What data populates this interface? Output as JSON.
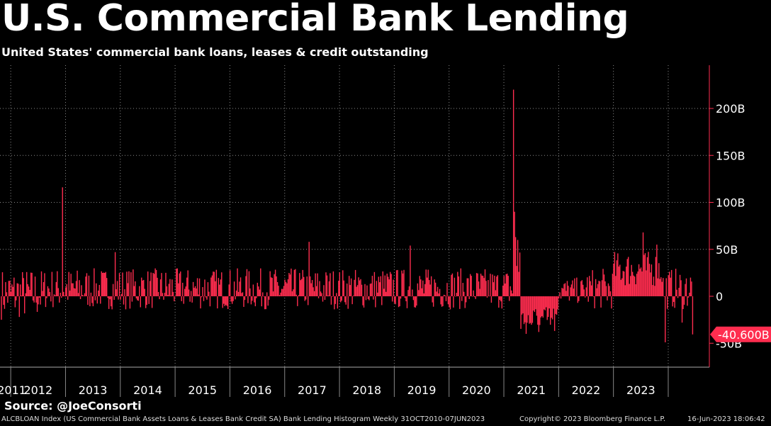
{
  "header": {
    "title": "U.S. Commercial Bank Lending",
    "subtitle": "United States' commercial bank loans, leases & credit outstanding"
  },
  "source": "Source: @JoeConsorti",
  "footer": {
    "left": "ALCBLOAN Index (US Commercial Bank Assets Loans & Leases Bank Credit SA) Bank Lending Histogram  Weekly 31OCT2010-07JUN2023",
    "middle": "Copyright© 2023 Bloomberg Finance L.P.",
    "right": "16-Jun-2023 18:06:42"
  },
  "colors": {
    "background": "#000000",
    "bar": "#ff2d4f",
    "axis": "#ff2d4f",
    "grid": "#8a8a8a",
    "label": "#ffffff",
    "last_value_bg": "#ff2d4f"
  },
  "chart_data": {
    "type": "bar",
    "frequency": "weekly",
    "period": "31OCT2010-07JUN2023",
    "units": "B",
    "ylim": [
      -75,
      240
    ],
    "y_ticks": [
      -50,
      0,
      50,
      100,
      150,
      200
    ],
    "y_tick_labels": [
      "-50B",
      "0",
      "50B",
      "100B",
      "150B",
      "200B"
    ],
    "x_tick_labels": [
      "2011",
      "2012",
      "2013",
      "2014",
      "2015",
      "2016",
      "2017",
      "2018",
      "2019",
      "2020",
      "2021",
      "2022",
      "2023"
    ],
    "grid": true,
    "last_value": -40.6,
    "last_value_label": "-40.600B",
    "x_start": 2010.83,
    "x_end": 2023.44,
    "highlights": [
      {
        "date": 2011.95,
        "value": 116
      },
      {
        "date": 2012.9,
        "value": 47
      },
      {
        "date": 2016.45,
        "value": 58
      },
      {
        "date": 2018.3,
        "value": 54
      },
      {
        "date": 2020.18,
        "value": 220
      },
      {
        "date": 2020.2,
        "value": 90
      },
      {
        "date": 2020.22,
        "value": 63
      },
      {
        "date": 2020.26,
        "value": 60
      },
      {
        "date": 2022.55,
        "value": 68
      },
      {
        "date": 2022.8,
        "value": 55
      },
      {
        "date": 2022.95,
        "value": -49
      },
      {
        "date": 2023.25,
        "value": -28
      },
      {
        "date": 2023.44,
        "value": -40.6
      }
    ]
  }
}
